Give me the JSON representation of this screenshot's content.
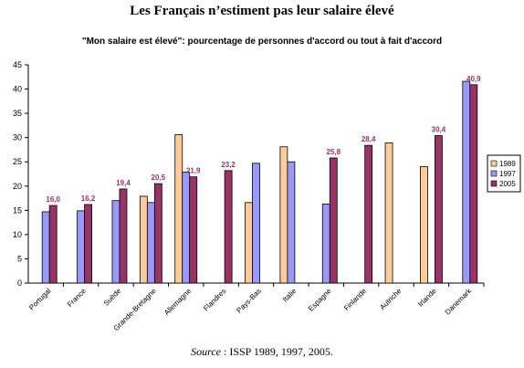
{
  "page_title": "Les Français n’estiment pas leur salaire élevé",
  "source": {
    "label": "Source",
    "text": " : ISSP 1989, 1997, 2005."
  },
  "colors": {
    "1989": "#ffcc99",
    "1997": "#9999ff",
    "2005": "#993366",
    "data_label": "#993366"
  },
  "chart_data": {
    "type": "bar",
    "title": "\"Mon salaire est élevé\": pourcentage de personnes d'accord ou tout à fait d'accord",
    "xlabel": "",
    "ylabel": "",
    "ylim": [
      0,
      45
    ],
    "yticks": [
      0,
      5,
      10,
      15,
      20,
      25,
      30,
      35,
      40,
      45
    ],
    "legend_position": "right",
    "grid": false,
    "categories": [
      "Portugal",
      "France",
      "Suède",
      "Grande-Bretagne",
      "Allemagne",
      "Flandres",
      "Pays-Bas",
      "Italie",
      "Espagne",
      "Finlande",
      "Autriche",
      "Irlande",
      "Danemark"
    ],
    "series": [
      {
        "name": "1989",
        "values": [
          null,
          null,
          null,
          17.9,
          30.6,
          null,
          16.6,
          28.1,
          null,
          null,
          28.9,
          24.0,
          null
        ]
      },
      {
        "name": "1997",
        "values": [
          14.7,
          14.9,
          17.0,
          16.6,
          22.9,
          null,
          24.7,
          25.0,
          16.3,
          null,
          null,
          null,
          41.6
        ]
      },
      {
        "name": "2005",
        "values": [
          16.0,
          16.2,
          19.4,
          20.5,
          21.9,
          23.2,
          null,
          null,
          25.8,
          28.4,
          null,
          30.4,
          40.9
        ]
      }
    ],
    "data_labels": [
      "16,0",
      "16,2",
      "19,4",
      "20,5",
      "21,9",
      "23,2",
      null,
      null,
      "25,8",
      "28,4",
      null,
      "30,4",
      "40,9"
    ]
  }
}
